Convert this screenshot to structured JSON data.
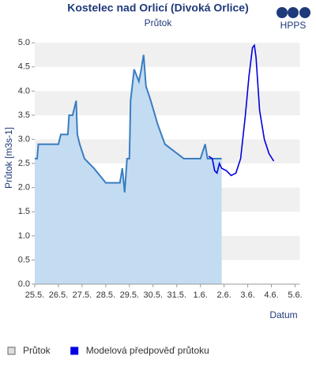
{
  "logo": "HPPS",
  "chart_data": {
    "type": "line",
    "title": "Kostelec nad Orlicí (Divoká Orlice)",
    "subtitle": "Průtok",
    "x_label": "Datum",
    "y_label": "Průtok [m3s-1]",
    "xlim": [
      0,
      11.2
    ],
    "ylim": [
      0,
      5.2
    ],
    "xticks": [
      {
        "value": 0,
        "label": "25.5."
      },
      {
        "value": 1,
        "label": "26.5."
      },
      {
        "value": 2,
        "label": "27.5."
      },
      {
        "value": 3,
        "label": "28.5."
      },
      {
        "value": 4,
        "label": "29.5."
      },
      {
        "value": 5,
        "label": "30.5."
      },
      {
        "value": 6,
        "label": "31.5."
      },
      {
        "value": 7,
        "label": "1.6."
      },
      {
        "value": 8,
        "label": "2.6."
      },
      {
        "value": 9,
        "label": "3.6."
      },
      {
        "value": 10,
        "label": "4.6."
      },
      {
        "value": 11,
        "label": "5.6."
      }
    ],
    "yticks": [
      {
        "value": 0,
        "label": "0.0"
      },
      0.5,
      {
        "value": 1,
        "label": "1.0"
      },
      1.5,
      {
        "value": 2,
        "label": "2.0"
      },
      2.5,
      {
        "value": 3,
        "label": "3.0"
      },
      3.5,
      {
        "value": 4,
        "label": "4.0"
      },
      4.5,
      {
        "value": 5,
        "label": "5.0"
      }
    ],
    "grid": "bands",
    "series": [
      {
        "name": "Průtok",
        "kind": "area",
        "color": "#3a7dc0",
        "fill": "#c4dcf2",
        "x": [
          0,
          0.1,
          0.15,
          0.3,
          1.0,
          1.1,
          1.4,
          1.45,
          1.6,
          1.75,
          1.8,
          1.9,
          2.1,
          2.5,
          3.0,
          3.6,
          3.7,
          3.8,
          3.9,
          4.0,
          4.05,
          4.2,
          4.4,
          4.5,
          4.6,
          4.7,
          4.9,
          5.2,
          5.5,
          5.9,
          6.3,
          6.6,
          7.0,
          7.2,
          7.3,
          7.9
        ],
        "values": [
          2.6,
          2.6,
          2.9,
          2.9,
          2.9,
          3.1,
          3.1,
          3.5,
          3.5,
          3.8,
          3.1,
          2.9,
          2.6,
          2.4,
          2.1,
          2.1,
          2.4,
          1.9,
          2.6,
          2.6,
          3.8,
          4.45,
          4.2,
          4.45,
          4.75,
          4.1,
          3.8,
          3.3,
          2.9,
          2.75,
          2.6,
          2.6,
          2.6,
          2.9,
          2.6,
          2.6
        ]
      },
      {
        "name": "Modelová předpověď průtoku",
        "kind": "line",
        "color": "#0000e0",
        "x": [
          7.35,
          7.5,
          7.6,
          7.7,
          7.8,
          7.9,
          8.1,
          8.3,
          8.5,
          8.7,
          8.9,
          9.05,
          9.2,
          9.28,
          9.35,
          9.5,
          9.7,
          9.9,
          10.1
        ],
        "values": [
          2.65,
          2.6,
          2.35,
          2.3,
          2.5,
          2.4,
          2.35,
          2.25,
          2.3,
          2.6,
          3.5,
          4.3,
          4.9,
          4.95,
          4.7,
          3.6,
          3.0,
          2.7,
          2.55
        ]
      }
    ]
  }
}
